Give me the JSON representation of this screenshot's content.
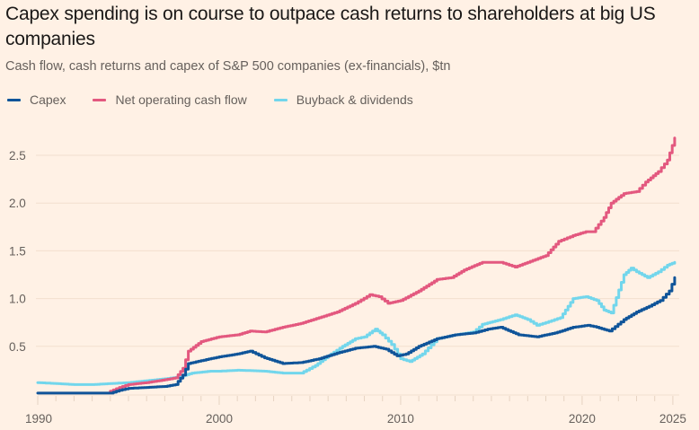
{
  "title": "Capex spending is on course to outpace cash returns to shareholders at big US companies",
  "subtitle": "Cash flow, cash returns and capex of S&P 500 companies (ex-financials), $tn",
  "colors": {
    "background": "#fff1e5",
    "capex": "#0f5499",
    "net_operating_cash_flow": "#e3587f",
    "buyback_dividends": "#72d6ec",
    "grid": "#f2dfce",
    "axis_text": "#66605c"
  },
  "legend": [
    {
      "label": "Capex",
      "color": "#0f5499"
    },
    {
      "label": "Net operating cash flow",
      "color": "#e3587f"
    },
    {
      "label": "Buyback & dividends",
      "color": "#72d6ec"
    }
  ],
  "chart_data": {
    "type": "line",
    "title": "Capex spending is on course to outpace cash returns to shareholders at big US companies",
    "subtitle": "Cash flow, cash returns and capex of S&P 500 companies (ex-financials), $tn",
    "xlabel": "",
    "ylabel": "$tn",
    "xlim": [
      1990,
      2025.3
    ],
    "ylim": [
      0,
      2.7
    ],
    "x_ticks": [
      1990,
      2000,
      2010,
      2020,
      2025
    ],
    "x_tick_labels": [
      "1990",
      "2000",
      "2010",
      "2020",
      "2025"
    ],
    "y_ticks": [
      0.5,
      1.0,
      1.5,
      2.0,
      2.5
    ],
    "y_tick_labels": [
      "0.5",
      "1.0",
      "1.5",
      "2.0",
      "2.5"
    ],
    "grid": true,
    "legend_position": "top-left",
    "series": [
      {
        "name": "Capex",
        "color": "#0f5499",
        "x": [
          1990,
          1991,
          1992,
          1993,
          1994,
          1994.5,
          1995,
          1996,
          1997,
          1997.6,
          1998,
          1998.3,
          1999,
          2000,
          2001,
          2001.7,
          2002.5,
          2003.5,
          2004.5,
          2005.5,
          2006.5,
          2007.5,
          2008.5,
          2009.2,
          2009.8,
          2010.3,
          2011,
          2012,
          2013,
          2014,
          2014.8,
          2015.5,
          2016.5,
          2017.5,
          2018.5,
          2019.5,
          2020.3,
          2020.8,
          2021.5,
          2022.3,
          2023,
          2023.7,
          2024.3,
          2024.8,
          2025.1
        ],
        "values": [
          0.01,
          0.01,
          0.01,
          0.01,
          0.01,
          0.04,
          0.06,
          0.07,
          0.08,
          0.1,
          0.2,
          0.32,
          0.35,
          0.39,
          0.42,
          0.45,
          0.38,
          0.32,
          0.33,
          0.37,
          0.43,
          0.48,
          0.5,
          0.47,
          0.4,
          0.42,
          0.5,
          0.58,
          0.62,
          0.64,
          0.68,
          0.7,
          0.62,
          0.6,
          0.64,
          0.7,
          0.72,
          0.7,
          0.66,
          0.78,
          0.86,
          0.92,
          0.98,
          1.08,
          1.22
        ]
      },
      {
        "name": "Net operating cash flow",
        "color": "#e3587f",
        "x": [
          1994,
          1994.5,
          1995,
          1996,
          1997,
          1997.6,
          1998,
          1998.3,
          1999,
          2000,
          2001,
          2001.7,
          2002.5,
          2003.5,
          2004.5,
          2005.5,
          2006.5,
          2007.5,
          2008.3,
          2008.8,
          2009.3,
          2010,
          2011,
          2012,
          2012.8,
          2013.5,
          2014.5,
          2015.5,
          2016.3,
          2017,
          2018,
          2018.7,
          2019.5,
          2020.2,
          2020.6,
          2021.2,
          2021.6,
          2022.3,
          2023,
          2023.5,
          2024.2,
          2024.7,
          2025.1
        ],
        "values": [
          0.03,
          0.07,
          0.1,
          0.12,
          0.15,
          0.17,
          0.27,
          0.45,
          0.55,
          0.6,
          0.62,
          0.66,
          0.65,
          0.7,
          0.74,
          0.8,
          0.86,
          0.95,
          1.04,
          1.02,
          0.95,
          0.98,
          1.08,
          1.2,
          1.22,
          1.3,
          1.38,
          1.38,
          1.33,
          1.38,
          1.45,
          1.6,
          1.66,
          1.7,
          1.7,
          1.85,
          2.0,
          2.1,
          2.12,
          2.22,
          2.33,
          2.45,
          2.68
        ]
      },
      {
        "name": "Buyback & dividends",
        "color": "#72d6ec",
        "x": [
          1990,
          1991,
          1992,
          1993,
          1994,
          1995,
          1996,
          1997,
          1997.8,
          1998.5,
          1999.5,
          2000,
          2001,
          2002.5,
          2003.5,
          2004.5,
          2005.3,
          2006,
          2006.8,
          2007.5,
          2008,
          2008.6,
          2009,
          2009.5,
          2010,
          2010.5,
          2011.2,
          2012,
          2013,
          2014,
          2014.5,
          2015.5,
          2016.3,
          2017,
          2017.5,
          2018,
          2018.8,
          2019.5,
          2020.2,
          2020.8,
          2021.2,
          2021.6,
          2022.3,
          2022.7,
          2023,
          2023.6,
          2024.2,
          2024.7,
          2025.1
        ],
        "values": [
          0.12,
          0.11,
          0.1,
          0.1,
          0.11,
          0.12,
          0.14,
          0.16,
          0.18,
          0.22,
          0.24,
          0.24,
          0.25,
          0.24,
          0.22,
          0.22,
          0.3,
          0.4,
          0.5,
          0.58,
          0.6,
          0.68,
          0.62,
          0.52,
          0.37,
          0.34,
          0.42,
          0.58,
          0.62,
          0.65,
          0.73,
          0.78,
          0.83,
          0.78,
          0.72,
          0.75,
          0.8,
          1.0,
          1.02,
          0.98,
          0.88,
          0.85,
          1.25,
          1.32,
          1.28,
          1.22,
          1.28,
          1.35,
          1.38
        ]
      }
    ]
  }
}
